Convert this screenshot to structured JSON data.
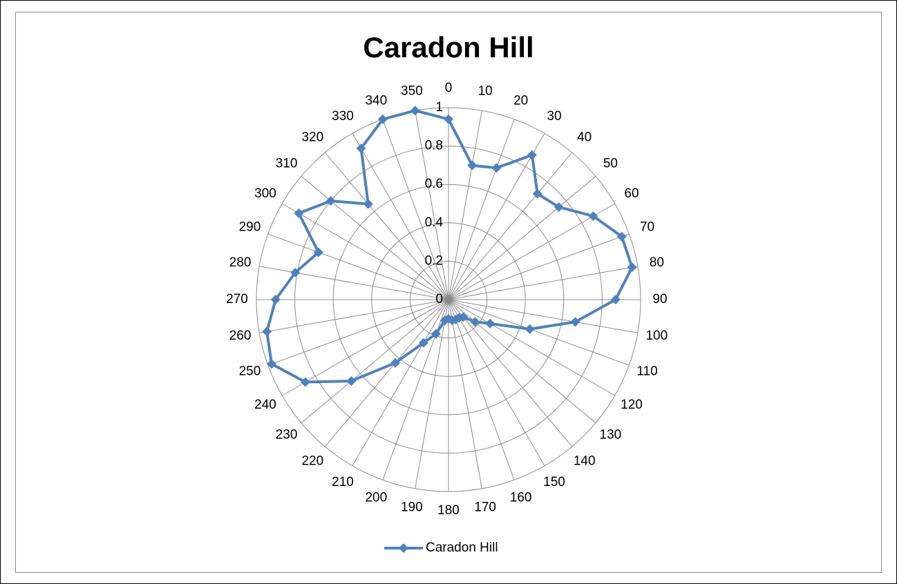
{
  "chart_data": {
    "type": "radar",
    "title": "Caradon Hill",
    "categories": [
      "0",
      "10",
      "20",
      "30",
      "40",
      "50",
      "60",
      "70",
      "80",
      "90",
      "100",
      "110",
      "120",
      "130",
      "140",
      "150",
      "160",
      "170",
      "180",
      "190",
      "200",
      "210",
      "220",
      "230",
      "240",
      "250",
      "260",
      "270",
      "280",
      "290",
      "300",
      "310",
      "320",
      "330",
      "340",
      "350"
    ],
    "series": [
      {
        "name": "Caradon Hill",
        "color": "#4f81bd",
        "values": [
          0.94,
          0.71,
          0.73,
          0.87,
          0.72,
          0.75,
          0.87,
          0.96,
          0.97,
          0.87,
          0.67,
          0.45,
          0.25,
          0.18,
          0.12,
          0.11,
          0.11,
          0.11,
          0.1,
          0.11,
          0.19,
          0.26,
          0.43,
          0.66,
          0.86,
          0.98,
          0.96,
          0.9,
          0.81,
          0.72,
          0.9,
          0.8,
          0.65,
          0.91,
          1.0,
          1.0
        ]
      }
    ],
    "rlim": [
      0,
      1
    ],
    "rticks": [
      0,
      0.2,
      0.4,
      0.6,
      0.8,
      1
    ],
    "grid": true,
    "legend": "bottom"
  }
}
